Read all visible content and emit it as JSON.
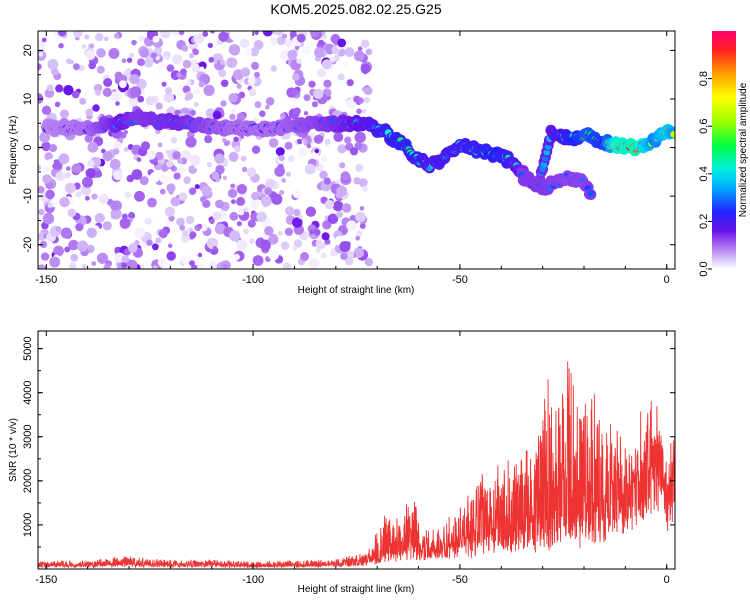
{
  "title": "KOM5.2025.082.02.25.G25",
  "chart_data": [
    {
      "type": "heatmap",
      "xlabel": "Height of straight line (km)",
      "ylabel": "Frequency (Hz)",
      "xlim": [
        -152,
        2
      ],
      "ylim": [
        -25,
        24
      ],
      "xticks": [
        -150,
        -100,
        -50,
        0
      ],
      "yticks": [
        20,
        10,
        0,
        -10,
        -20
      ],
      "xtick_labels": [
        "-150",
        "-100",
        "-50",
        "0"
      ],
      "ytick_labels": [
        "20",
        "10",
        "0",
        "-10",
        "-20"
      ],
      "colorbar": {
        "label": "Normalized spectral amplitude",
        "range": [
          0,
          1
        ],
        "ticks": [
          0.0,
          0.2,
          0.4,
          0.6,
          0.8
        ],
        "tick_labels": [
          "0.0",
          "0.2",
          "0.4",
          "0.6",
          "0.8"
        ],
        "colormap": "rainbow (white/purple low to red high)"
      },
      "noise_region": {
        "x": [
          -152,
          -72
        ],
        "y": [
          -25,
          24
        ],
        "amplitude": 0.12
      },
      "dominant_track": [
        {
          "x": -150,
          "y": 4,
          "a": 0.18
        },
        {
          "x": -140,
          "y": 4,
          "a": 0.22
        },
        {
          "x": -132,
          "y": 5,
          "a": 0.35
        },
        {
          "x": -128,
          "y": 6,
          "a": 0.3
        },
        {
          "x": -118,
          "y": 5,
          "a": 0.33
        },
        {
          "x": -105,
          "y": 4,
          "a": 0.22
        },
        {
          "x": -95,
          "y": 4,
          "a": 0.22
        },
        {
          "x": -85,
          "y": 5,
          "a": 0.28
        },
        {
          "x": -80,
          "y": 5,
          "a": 0.32
        },
        {
          "x": -73,
          "y": 5,
          "a": 0.38
        },
        {
          "x": -69,
          "y": 3.5,
          "a": 0.45
        },
        {
          "x": -64,
          "y": 1,
          "a": 0.5
        },
        {
          "x": -61,
          "y": -2,
          "a": 0.48
        },
        {
          "x": -57,
          "y": -4,
          "a": 0.42
        },
        {
          "x": -50,
          "y": 0.5,
          "a": 0.45
        },
        {
          "x": -46,
          "y": -0.5,
          "a": 0.48
        },
        {
          "x": -41,
          "y": -1.5,
          "a": 0.52
        },
        {
          "x": -38,
          "y": -2.5,
          "a": 0.45
        },
        {
          "x": -34,
          "y": -6,
          "a": 0.3
        },
        {
          "x": -31,
          "y": -8,
          "a": 0.3
        },
        {
          "x": -28,
          "y": 3,
          "a": 0.38
        },
        {
          "x": -24,
          "y": 2,
          "a": 0.48
        },
        {
          "x": -19,
          "y": 2.5,
          "a": 0.62
        },
        {
          "x": -15,
          "y": 1,
          "a": 0.55
        },
        {
          "x": -12,
          "y": 0.5,
          "a": 0.95
        },
        {
          "x": -7,
          "y": 0,
          "a": 1.0
        },
        {
          "x": -3,
          "y": 1.5,
          "a": 0.68
        },
        {
          "x": 0,
          "y": 3.5,
          "a": 0.85
        },
        {
          "x": 2,
          "y": 2.5,
          "a": 0.7
        }
      ],
      "secondary_track": [
        {
          "x": -35,
          "y": -6,
          "a": 0.3
        },
        {
          "x": -30,
          "y": -8.5,
          "a": 0.3
        },
        {
          "x": -24,
          "y": -6,
          "a": 0.28
        },
        {
          "x": -20,
          "y": -7,
          "a": 0.28
        },
        {
          "x": -18,
          "y": -10,
          "a": 0.3
        }
      ]
    },
    {
      "type": "line",
      "xlabel": "Height of straight line (km)",
      "ylabel": "SNR (10 * v/v)",
      "xlim": [
        -152,
        2
      ],
      "ylim": [
        0,
        5400
      ],
      "xticks": [
        -150,
        -100,
        -50,
        0
      ],
      "yticks": [
        1000,
        2000,
        3000,
        4000,
        5000
      ],
      "xtick_labels": [
        "-150",
        "-100",
        "-50",
        "0"
      ],
      "ytick_labels": [
        "1000",
        "2000",
        "3000",
        "4000",
        "5000"
      ],
      "line_color": "#ee3333",
      "envelope": {
        "x": [
          -152,
          -140,
          -131,
          -120,
          -110,
          -100,
          -90,
          -80,
          -73,
          -70,
          -68,
          -64,
          -62,
          -60,
          -56,
          -52,
          -48,
          -45,
          -40,
          -37,
          -33,
          -30,
          -28,
          -27,
          -25,
          -23,
          -20,
          -17,
          -14,
          -12,
          -8,
          -6,
          -4,
          -3,
          -1,
          0,
          1,
          2
        ],
        "base": [
          60,
          80,
          120,
          80,
          90,
          70,
          70,
          90,
          150,
          250,
          350,
          400,
          500,
          450,
          400,
          500,
          600,
          700,
          700,
          800,
          900,
          800,
          1000,
          1200,
          1100,
          1000,
          1100,
          1200,
          1300,
          1500,
          2200,
          2500,
          2800,
          3200,
          3000,
          2000,
          2400,
          2700
        ],
        "peak": [
          200,
          220,
          320,
          220,
          230,
          180,
          200,
          240,
          380,
          900,
          1300,
          1200,
          2000,
          1400,
          900,
          1300,
          1700,
          2300,
          2600,
          2500,
          3000,
          3600,
          5400,
          4300,
          5400,
          4600,
          4000,
          4300,
          3700,
          3300,
          3300,
          3900,
          4000,
          4900,
          3300,
          2400,
          3800,
          3600
        ]
      }
    }
  ]
}
